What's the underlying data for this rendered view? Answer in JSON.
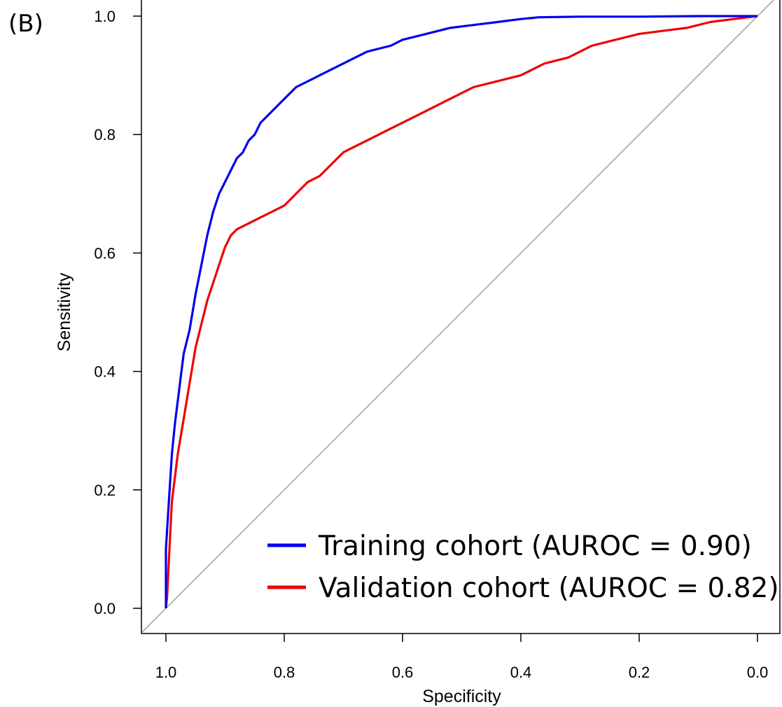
{
  "panel_label": "(B)",
  "chart_data": {
    "type": "line",
    "xlabel": "Specificity",
    "ylabel": "Sensitivity",
    "xlim": [
      1.04,
      -0.04
    ],
    "ylim": [
      -0.04,
      1.04
    ],
    "x_reversed": true,
    "x_ticks": [
      1.0,
      0.8,
      0.6,
      0.4,
      0.2,
      0.0
    ],
    "x_tick_labels": [
      "1.0",
      "0.8",
      "0.6",
      "0.4",
      "0.2",
      "0.0"
    ],
    "y_ticks": [
      0.0,
      0.2,
      0.4,
      0.6,
      0.8,
      1.0
    ],
    "y_tick_labels": [
      "0.0",
      "0.2",
      "0.4",
      "0.6",
      "0.8",
      "1.0"
    ],
    "grid": false,
    "legend_position": "bottom-right",
    "diagonal": {
      "x": [
        1.04,
        -0.04
      ],
      "y": [
        -0.04,
        1.04
      ],
      "color": "#a0a0a0"
    },
    "series": [
      {
        "name": "Training cohort (AUROC = 0.90)",
        "color": "#0000ee",
        "x": [
          1.0,
          1.0,
          0.995,
          0.99,
          0.985,
          0.98,
          0.975,
          0.97,
          0.96,
          0.95,
          0.94,
          0.93,
          0.92,
          0.91,
          0.9,
          0.89,
          0.88,
          0.87,
          0.86,
          0.85,
          0.84,
          0.82,
          0.8,
          0.78,
          0.76,
          0.74,
          0.72,
          0.7,
          0.68,
          0.66,
          0.64,
          0.62,
          0.6,
          0.56,
          0.52,
          0.48,
          0.44,
          0.4,
          0.37,
          0.3,
          0.2,
          0.1,
          0.0
        ],
        "y": [
          0.0,
          0.1,
          0.18,
          0.26,
          0.31,
          0.35,
          0.39,
          0.43,
          0.47,
          0.53,
          0.58,
          0.63,
          0.67,
          0.7,
          0.72,
          0.74,
          0.76,
          0.77,
          0.79,
          0.8,
          0.82,
          0.84,
          0.86,
          0.88,
          0.89,
          0.9,
          0.91,
          0.92,
          0.93,
          0.94,
          0.945,
          0.95,
          0.96,
          0.97,
          0.98,
          0.985,
          0.99,
          0.995,
          0.998,
          0.999,
          0.999,
          1.0,
          1.0
        ]
      },
      {
        "name": "Validation cohort (AUROC = 0.82)",
        "color": "#ee0000",
        "x": [
          1.0,
          0.998,
          0.995,
          0.99,
          0.985,
          0.98,
          0.97,
          0.96,
          0.95,
          0.94,
          0.93,
          0.92,
          0.91,
          0.9,
          0.89,
          0.88,
          0.86,
          0.84,
          0.82,
          0.8,
          0.78,
          0.76,
          0.74,
          0.72,
          0.7,
          0.68,
          0.66,
          0.64,
          0.62,
          0.6,
          0.56,
          0.52,
          0.48,
          0.44,
          0.4,
          0.36,
          0.32,
          0.28,
          0.24,
          0.2,
          0.16,
          0.12,
          0.08,
          0.04,
          0.0
        ],
        "y": [
          0.0,
          0.02,
          0.08,
          0.18,
          0.22,
          0.26,
          0.32,
          0.38,
          0.44,
          0.48,
          0.52,
          0.55,
          0.58,
          0.61,
          0.63,
          0.64,
          0.65,
          0.66,
          0.67,
          0.68,
          0.7,
          0.72,
          0.73,
          0.75,
          0.77,
          0.78,
          0.79,
          0.8,
          0.81,
          0.82,
          0.84,
          0.86,
          0.88,
          0.89,
          0.9,
          0.92,
          0.93,
          0.95,
          0.96,
          0.97,
          0.975,
          0.98,
          0.99,
          0.995,
          1.0
        ]
      }
    ]
  }
}
